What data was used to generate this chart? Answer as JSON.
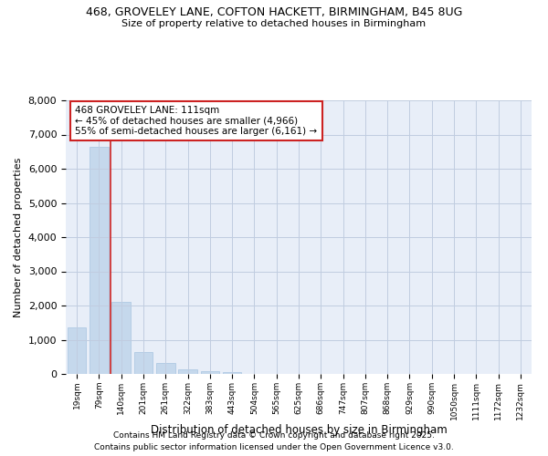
{
  "title_line1": "468, GROVELEY LANE, COFTON HACKETT, BIRMINGHAM, B45 8UG",
  "title_line2": "Size of property relative to detached houses in Birmingham",
  "xlabel": "Distribution of detached houses by size in Birmingham",
  "ylabel": "Number of detached properties",
  "annotation_line1": "468 GROVELEY LANE: 111sqm",
  "annotation_line2": "← 45% of detached houses are smaller (4,966)",
  "annotation_line3": "55% of semi-detached houses are larger (6,161) →",
  "vertical_line_x": 1.5,
  "bar_color": "#c5d8ec",
  "bar_edgecolor": "#a8c4e0",
  "vertical_line_color": "#cc2222",
  "categories": [
    "19sqm",
    "79sqm",
    "140sqm",
    "201sqm",
    "261sqm",
    "322sqm",
    "383sqm",
    "443sqm",
    "504sqm",
    "565sqm",
    "625sqm",
    "686sqm",
    "747sqm",
    "807sqm",
    "868sqm",
    "929sqm",
    "990sqm",
    "1050sqm",
    "1111sqm",
    "1172sqm",
    "1232sqm"
  ],
  "values": [
    1350,
    6650,
    2100,
    650,
    310,
    130,
    70,
    50,
    5,
    1,
    1,
    0,
    0,
    0,
    0,
    0,
    0,
    0,
    0,
    0,
    0
  ],
  "ylim": [
    0,
    8000
  ],
  "yticks": [
    0,
    1000,
    2000,
    3000,
    4000,
    5000,
    6000,
    7000,
    8000
  ],
  "background_color": "#e8eef8",
  "grid_color": "#c0cce0",
  "footnote_line1": "Contains HM Land Registry data © Crown copyright and database right 2025.",
  "footnote_line2": "Contains public sector information licensed under the Open Government Licence v3.0."
}
